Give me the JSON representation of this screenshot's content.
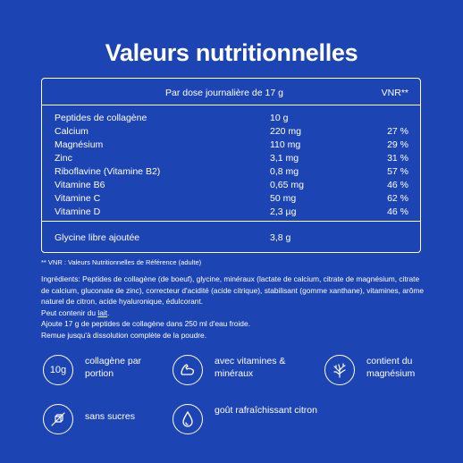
{
  "title": "Valeurs nutritionnelles",
  "table": {
    "header_dose": "Par dose journalière de 17 g",
    "header_vnr": "VNR**",
    "rows": [
      {
        "name": "Peptides de collagène",
        "value": "10 g",
        "vnr": ""
      },
      {
        "name": "Calcium",
        "value": "220 mg",
        "vnr": "27 %"
      },
      {
        "name": "Magnésium",
        "value": "110 mg",
        "vnr": "29 %"
      },
      {
        "name": "Zinc",
        "value": "3,1 mg",
        "vnr": "31 %"
      },
      {
        "name": "Riboflavine (Vitamine B2)",
        "value": "0,8 mg",
        "vnr": "57 %"
      },
      {
        "name": "Vitamine B6",
        "value": "0,65 mg",
        "vnr": "46 %"
      },
      {
        "name": "Vitamine C",
        "value": "50 mg",
        "vnr": "62 %"
      },
      {
        "name": "Vitamine D",
        "value": "2,3 µg",
        "vnr": "46 %"
      }
    ],
    "footer_row": {
      "name": "Glycine libre ajoutée",
      "value": "3,8 g"
    }
  },
  "note": "** VNR : Valeurs Nutritionnelles de Référence (adulte)",
  "ingredients": {
    "line1": "Ingrédients: Peptides de collagène (de boeuf), glycine, minéraux (lactate de calcium, citrate de magnésium, citrate de calcium, gluconate de zinc), correcteur d'acidité (acide citrique), stabilisant (gomme xanthane), vitamines, arôme naturel de citron, acide hyaluronique, édulcorant.",
    "line2_prefix": "Peut contenir du ",
    "line2_underlined": "lait",
    "line2_suffix": ".",
    "line3": "Ajoute 17 g de peptides de collagène dans 250 ml d'eau froide.",
    "line4": " Remue jusqu'à dissolution complète de la poudre."
  },
  "features": [
    {
      "icon": "10g-icon",
      "icon_text": "10g",
      "label": "collagène par portion"
    },
    {
      "icon": "muscle-arm-icon",
      "label": "avec vitamines & minéraux"
    },
    {
      "icon": "coral-icon",
      "label": "contient du magnésium"
    },
    {
      "icon": "no-sugar-icon",
      "label": "sans sucres"
    },
    {
      "icon": "water-drop-icon",
      "label": "goût rafraîchissant citron"
    }
  ],
  "colors": {
    "background": "#1d44b3",
    "foreground": "#ffffff"
  }
}
